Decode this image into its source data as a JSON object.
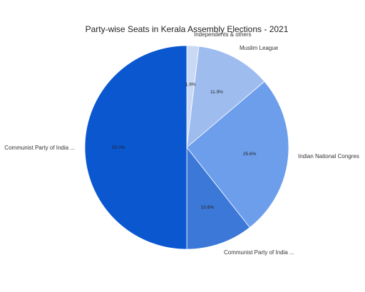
{
  "chart_data": {
    "type": "pie",
    "title": "Party-wise Seats in Kerala Assembly Elections - 2021",
    "slices": [
      {
        "label": "Independents & others",
        "value": 1.9,
        "pct_label": "1.9%",
        "color": "#c9d9f5"
      },
      {
        "label": "Muslim League",
        "value": 11.9,
        "pct_label": "11.9%",
        "color": "#9fbcef"
      },
      {
        "label": "Indian National Congres",
        "value": 25.6,
        "pct_label": "25.6%",
        "color": "#6d9eeb"
      },
      {
        "label": "Communist Party of India ...",
        "value": 10.6,
        "pct_label": "10.6%",
        "color": "#3c78d8"
      },
      {
        "label": "Communist Party of India ...",
        "value": 50.0,
        "pct_label": "50.0%",
        "color": "#0b57d0"
      }
    ],
    "start_angle": "12 o'clock",
    "direction": "clockwise",
    "legend": "none"
  }
}
